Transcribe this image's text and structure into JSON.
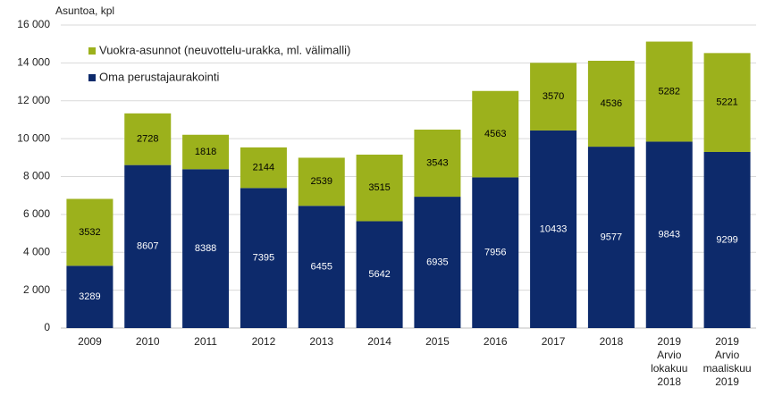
{
  "chart_data": {
    "type": "stacked_bar",
    "y_axis_label": "Asuntoa, kpl",
    "categories": [
      "2009",
      "2010",
      "2011",
      "2012",
      "2013",
      "2014",
      "2015",
      "2016",
      "2017",
      "2018",
      "2019\nArvio\nlokakuu\n2018",
      "2019\nArvio\nmaaliskuu\n2019"
    ],
    "series": [
      {
        "name": "Oma perustajaurakointi",
        "color": "#0d2a6b",
        "label_color": "#ffffff",
        "values": [
          3289,
          8607,
          8388,
          7395,
          6455,
          5642,
          6935,
          7956,
          10433,
          9577,
          9843,
          9299
        ]
      },
      {
        "name": "Vuokra-asunnot (neuvottelu-urakka, ml. välimalli)",
        "color": "#9cb11c",
        "label_color": "#000000",
        "values": [
          3532,
          2728,
          1818,
          2144,
          2539,
          3515,
          3543,
          4563,
          3570,
          4536,
          5282,
          5221
        ]
      }
    ],
    "legend_order": [
      1,
      0
    ],
    "ylim": [
      0,
      16000
    ],
    "yticks": [
      0,
      {
        "value": 2000,
        "label": "2 000"
      },
      {
        "value": 4000,
        "label": "4 000"
      },
      {
        "value": 6000,
        "label": "6 000"
      },
      {
        "value": 8000,
        "label": "8 000"
      },
      {
        "value": 10000,
        "label": "10 000"
      },
      {
        "value": 12000,
        "label": "12 000"
      },
      {
        "value": 14000,
        "label": "14 000"
      },
      {
        "value": 16000,
        "label": "16 000"
      }
    ],
    "grid": true,
    "legend": "upper left"
  }
}
